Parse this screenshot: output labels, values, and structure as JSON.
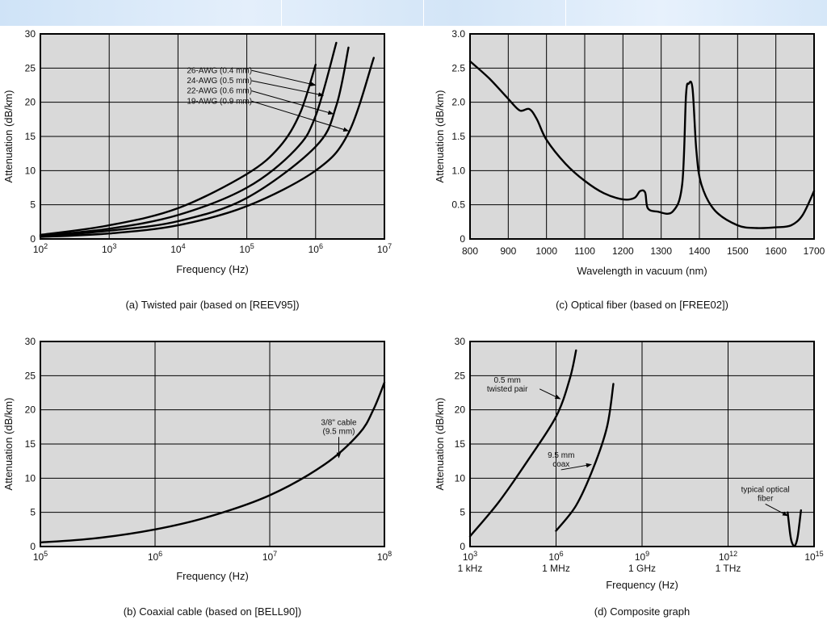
{
  "banner": {
    "segments": 4,
    "color": "#d6e7f8"
  },
  "style": {
    "plot_bg": "#d9d9d9",
    "line_color": "#000000",
    "grid_color": "#000000"
  },
  "chart_data": [
    {
      "id": "a",
      "type": "line",
      "caption": "(a) Twisted pair (based on [REEV95])",
      "xlabel": "Frequency (Hz)",
      "ylabel": "Attenuation (dB/km)",
      "x_scale": "log",
      "xlim": [
        100,
        10000000
      ],
      "ylim": [
        0,
        30
      ],
      "x_ticks": [
        {
          "value": 100,
          "base": "10",
          "exp": "2"
        },
        {
          "value": 1000,
          "base": "10",
          "exp": "3"
        },
        {
          "value": 10000,
          "base": "10",
          "exp": "4"
        },
        {
          "value": 100000,
          "base": "10",
          "exp": "5"
        },
        {
          "value": 1000000,
          "base": "10",
          "exp": "6"
        },
        {
          "value": 10000000,
          "base": "10",
          "exp": "7"
        }
      ],
      "y_ticks": [
        {
          "value": 0,
          "label": "0"
        },
        {
          "value": 5,
          "label": "5"
        },
        {
          "value": 10,
          "label": "10"
        },
        {
          "value": 15,
          "label": "15"
        },
        {
          "value": 20,
          "label": "20"
        },
        {
          "value": 25,
          "label": "25"
        },
        {
          "value": 30,
          "label": "30"
        }
      ],
      "grid": true,
      "series": [
        {
          "name": "26-AWG (0.4 mm)",
          "points": [
            [
              100,
              0.6
            ],
            [
              1000,
              2.0
            ],
            [
              10000,
              4.5
            ],
            [
              100000,
              9.5
            ],
            [
              300000,
              13.5
            ],
            [
              600000,
              18.5
            ],
            [
              1000000,
              25.5
            ]
          ]
        },
        {
          "name": "24-AWG (0.5 mm)",
          "points": [
            [
              100,
              0.5
            ],
            [
              1000,
              1.5
            ],
            [
              10000,
              3.5
            ],
            [
              100000,
              7.5
            ],
            [
              500000,
              13.0
            ],
            [
              1000000,
              18.0
            ],
            [
              2000000,
              28.7
            ]
          ]
        },
        {
          "name": "22-AWG (0.6 mm)",
          "points": [
            [
              100,
              0.4
            ],
            [
              1000,
              1.2
            ],
            [
              10000,
              2.6
            ],
            [
              100000,
              6.0
            ],
            [
              1000000,
              13.5
            ],
            [
              2000000,
              19.5
            ],
            [
              3000000,
              28.0
            ]
          ]
        },
        {
          "name": "19-AWG (0.9 mm)",
          "points": [
            [
              100,
              0.3
            ],
            [
              1000,
              0.8
            ],
            [
              10000,
              2.0
            ],
            [
              100000,
              4.8
            ],
            [
              1000000,
              10.0
            ],
            [
              3000000,
              15.5
            ],
            [
              7000000,
              26.5
            ]
          ]
        }
      ],
      "annotations": [
        {
          "text": "26-AWG (0.4 mm)",
          "at": [
            40000,
            24.3
          ],
          "arrow_to": [
            1000000,
            22.5
          ]
        },
        {
          "text": "24-AWG (0.5 mm)",
          "at": [
            40000,
            22.8
          ],
          "arrow_to": [
            1300000,
            21.0
          ]
        },
        {
          "text": "22-AWG (0.6 mm)",
          "at": [
            40000,
            21.3
          ],
          "arrow_to": [
            1800000,
            18.3
          ]
        },
        {
          "text": "19-AWG (0.9 mm)",
          "at": [
            40000,
            19.8
          ],
          "arrow_to": [
            3000000,
            15.8
          ]
        }
      ]
    },
    {
      "id": "c",
      "type": "line",
      "caption": "(c) Optical fiber (based on [FREE02])",
      "xlabel": "Wavelength in vacuum (nm)",
      "ylabel": "Attenuation (dB/km)",
      "x_scale": "linear",
      "xlim": [
        800,
        1700
      ],
      "ylim": [
        0,
        3
      ],
      "x_ticks": [
        {
          "value": 800,
          "label": "800"
        },
        {
          "value": 900,
          "label": "900"
        },
        {
          "value": 1000,
          "label": "1000"
        },
        {
          "value": 1100,
          "label": "1100"
        },
        {
          "value": 1200,
          "label": "1200"
        },
        {
          "value": 1300,
          "label": "1300"
        },
        {
          "value": 1400,
          "label": "1400"
        },
        {
          "value": 1500,
          "label": "1500"
        },
        {
          "value": 1600,
          "label": "1600"
        },
        {
          "value": 1700,
          "label": "1700"
        }
      ],
      "y_ticks": [
        {
          "value": 0,
          "label": "0"
        },
        {
          "value": 0.5,
          "label": "0.5"
        },
        {
          "value": 1,
          "label": "1.0"
        },
        {
          "value": 1.5,
          "label": "1.5"
        },
        {
          "value": 2,
          "label": "2.0"
        },
        {
          "value": 2.5,
          "label": "2.5"
        },
        {
          "value": 3,
          "label": "3.0"
        }
      ],
      "grid": true,
      "series": [
        {
          "name": "",
          "points": [
            [
              800,
              2.6
            ],
            [
              850,
              2.35
            ],
            [
              900,
              2.05
            ],
            [
              930,
              1.88
            ],
            [
              955,
              1.9
            ],
            [
              975,
              1.75
            ],
            [
              1000,
              1.45
            ],
            [
              1050,
              1.1
            ],
            [
              1100,
              0.85
            ],
            [
              1150,
              0.67
            ],
            [
              1200,
              0.58
            ],
            [
              1230,
              0.6
            ],
            [
              1245,
              0.7
            ],
            [
              1258,
              0.68
            ],
            [
              1265,
              0.45
            ],
            [
              1290,
              0.4
            ],
            [
              1330,
              0.4
            ],
            [
              1355,
              0.8
            ],
            [
              1365,
              2.1
            ],
            [
              1372,
              2.27
            ],
            [
              1382,
              2.2
            ],
            [
              1392,
              1.3
            ],
            [
              1405,
              0.8
            ],
            [
              1440,
              0.42
            ],
            [
              1500,
              0.2
            ],
            [
              1550,
              0.16
            ],
            [
              1600,
              0.17
            ],
            [
              1640,
              0.2
            ],
            [
              1670,
              0.35
            ],
            [
              1700,
              0.7
            ]
          ]
        }
      ],
      "annotations": []
    },
    {
      "id": "b",
      "type": "line",
      "caption": "(b) Coaxial cable (based on [BELL90])",
      "xlabel": "Frequency (Hz)",
      "ylabel": "Attenuation (dB/km)",
      "x_scale": "log",
      "xlim": [
        100000,
        100000000
      ],
      "ylim": [
        0,
        30
      ],
      "x_ticks": [
        {
          "value": 100000,
          "base": "10",
          "exp": "5"
        },
        {
          "value": 1000000,
          "base": "10",
          "exp": "6"
        },
        {
          "value": 10000000,
          "base": "10",
          "exp": "7"
        },
        {
          "value": 100000000,
          "base": "10",
          "exp": "8"
        }
      ],
      "y_ticks": [
        {
          "value": 0,
          "label": "0"
        },
        {
          "value": 5,
          "label": "5"
        },
        {
          "value": 10,
          "label": "10"
        },
        {
          "value": 15,
          "label": "15"
        },
        {
          "value": 20,
          "label": "20"
        },
        {
          "value": 25,
          "label": "25"
        },
        {
          "value": 30,
          "label": "30"
        }
      ],
      "grid": true,
      "series": [
        {
          "name": "3/8\" cable (9.5 mm)",
          "points": [
            [
              100000,
              0.6
            ],
            [
              300000,
              1.2
            ],
            [
              1000000,
              2.5
            ],
            [
              3000000,
              4.4
            ],
            [
              10000000,
              7.5
            ],
            [
              30000000,
              12.0
            ],
            [
              60000000,
              16.5
            ],
            [
              80000000,
              20.0
            ],
            [
              100000000,
              24.0
            ]
          ]
        }
      ],
      "annotations": [
        {
          "text": "3/8\" cable",
          "text2": "(9.5 mm)",
          "at": [
            40000000,
            17.8
          ],
          "arrow_to": [
            40000000,
            13.0
          ]
        }
      ]
    },
    {
      "id": "d",
      "type": "line",
      "caption": "(d) Composite graph",
      "xlabel": "Frequency (Hz)",
      "ylabel": "Attenuation (dB/km)",
      "x_scale": "log",
      "xlim": [
        1000,
        1000000000000000
      ],
      "ylim": [
        0,
        30
      ],
      "x_ticks": [
        {
          "value": 1000,
          "base": "10",
          "exp": "3",
          "sub": "1 kHz"
        },
        {
          "value": 1000000,
          "base": "10",
          "exp": "6",
          "sub": "1 MHz"
        },
        {
          "value": 1000000000,
          "base": "10",
          "exp": "9",
          "sub": "1 GHz"
        },
        {
          "value": 1000000000000,
          "base": "10",
          "exp": "12",
          "sub": "1 THz"
        },
        {
          "value": 1000000000000000,
          "base": "10",
          "exp": "15",
          "sub": ""
        }
      ],
      "y_ticks": [
        {
          "value": 0,
          "label": "0"
        },
        {
          "value": 5,
          "label": "5"
        },
        {
          "value": 10,
          "label": "10"
        },
        {
          "value": 15,
          "label": "15"
        },
        {
          "value": 20,
          "label": "20"
        },
        {
          "value": 25,
          "label": "25"
        },
        {
          "value": 30,
          "label": "30"
        }
      ],
      "grid": true,
      "series": [
        {
          "name": "0.5 mm twisted pair",
          "points": [
            [
              1000,
              1.5
            ],
            [
              10000,
              6.5
            ],
            [
              100000,
              12.5
            ],
            [
              1000000,
              19.0
            ],
            [
              3000000,
              24.5
            ],
            [
              5000000,
              28.7
            ]
          ]
        },
        {
          "name": "9.5 mm coax",
          "points": [
            [
              1000000,
              2.3
            ],
            [
              5000000,
              6.0
            ],
            [
              20000000,
              11.5
            ],
            [
              60000000,
              17.5
            ],
            [
              100000000,
              23.8
            ]
          ]
        },
        {
          "name": "typical optical fiber",
          "points": [
            [
              120000000000000,
              5.0
            ],
            [
              150000000000000,
              1.5
            ],
            [
              180000000000000,
              0.3
            ],
            [
              220000000000000,
              0.2
            ],
            [
              270000000000000,
              1.5
            ],
            [
              350000000000000,
              5.3
            ]
          ]
        }
      ],
      "annotations": [
        {
          "text": "0.5 mm",
          "text2": "twisted pair",
          "at": [
            20000,
            24.0
          ],
          "arrow_to": [
            1400000,
            21.6
          ]
        },
        {
          "text": "9.5 mm",
          "text2": "coax",
          "at": [
            1500000,
            13.0
          ],
          "arrow_to": [
            17000000,
            12.0
          ]
        },
        {
          "text": "typical optical",
          "text2": "fiber",
          "at": [
            20000000000000,
            8.0
          ],
          "arrow_to": [
            120000000000000,
            4.5
          ]
        }
      ]
    }
  ]
}
